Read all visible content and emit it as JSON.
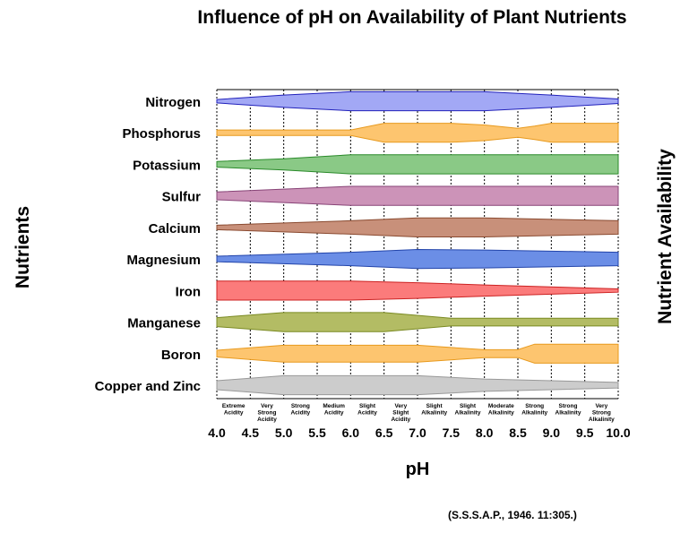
{
  "chart_data": {
    "type": "area",
    "title": "Influence of pH on Availability of Plant Nutrients",
    "xlabel": "pH",
    "ylabel_left": "Nutrients",
    "ylabel_right": "Nutrient Availability",
    "xlim": [
      4.0,
      10.0
    ],
    "x_ticks": [
      "4.0",
      "4.5",
      "5.0",
      "5.5",
      "6.0",
      "6.5",
      "7.0",
      "7.5",
      "8.0",
      "8.5",
      "9.0",
      "9.5",
      "10.0"
    ],
    "grid": true,
    "acidity_labels": [
      {
        "text": "Extreme Acidity",
        "ph": 4.25
      },
      {
        "text": "Very Strong Acidity",
        "ph": 4.75
      },
      {
        "text": "Strong Acidity",
        "ph": 5.25
      },
      {
        "text": "Medium Acidity",
        "ph": 5.75
      },
      {
        "text": "Slight Acidity",
        "ph": 6.25
      },
      {
        "text": "Very Slight Acidity",
        "ph": 6.75
      },
      {
        "text": "Slight Alkalinity",
        "ph": 7.25
      },
      {
        "text": "Slight Alkalinity",
        "ph": 7.75
      },
      {
        "text": "Moderate Alkalinity",
        "ph": 8.25
      },
      {
        "text": "Strong Alkalinity",
        "ph": 8.75
      },
      {
        "text": "Strong Alkalinity",
        "ph": 9.25
      },
      {
        "text": "Very Strong Alkalinity",
        "ph": 9.75
      }
    ],
    "series": [
      {
        "name": "Nitrogen",
        "color": "#a2a8f5",
        "stroke": "#2222bb",
        "points": [
          [
            4.0,
            0.15
          ],
          [
            5.0,
            0.55
          ],
          [
            6.0,
            0.85
          ],
          [
            8.0,
            0.85
          ],
          [
            9.0,
            0.55
          ],
          [
            10.0,
            0.2
          ]
        ]
      },
      {
        "name": "Phosphorus",
        "color": "#fdc56f",
        "stroke": "#e89a1e",
        "points": [
          [
            4.0,
            0.25
          ],
          [
            6.0,
            0.25
          ],
          [
            6.5,
            0.85
          ],
          [
            7.0,
            0.85
          ],
          [
            7.5,
            0.85
          ],
          [
            8.0,
            0.7
          ],
          [
            8.5,
            0.4
          ],
          [
            8.75,
            0.6
          ],
          [
            9.0,
            0.85
          ],
          [
            10.0,
            0.85
          ]
        ]
      },
      {
        "name": "Potassium",
        "color": "#8ac986",
        "stroke": "#2a8a2a",
        "points": [
          [
            4.0,
            0.25
          ],
          [
            5.0,
            0.5
          ],
          [
            6.0,
            0.85
          ],
          [
            10.0,
            0.85
          ]
        ]
      },
      {
        "name": "Sulfur",
        "color": "#cc93b8",
        "stroke": "#884477",
        "points": [
          [
            4.0,
            0.35
          ],
          [
            6.0,
            0.85
          ],
          [
            10.0,
            0.85
          ]
        ]
      },
      {
        "name": "Calcium",
        "color": "#c8907a",
        "stroke": "#8a4a30",
        "points": [
          [
            4.0,
            0.2
          ],
          [
            6.0,
            0.6
          ],
          [
            7.0,
            0.85
          ],
          [
            8.0,
            0.85
          ],
          [
            10.0,
            0.6
          ]
        ]
      },
      {
        "name": "Magnesium",
        "color": "#6b8ee6",
        "stroke": "#2244aa",
        "points": [
          [
            4.0,
            0.25
          ],
          [
            6.0,
            0.6
          ],
          [
            7.0,
            0.85
          ],
          [
            8.0,
            0.8
          ],
          [
            10.0,
            0.6
          ]
        ]
      },
      {
        "name": "Iron",
        "color": "#fb7b7b",
        "stroke": "#cc2222",
        "points": [
          [
            4.0,
            0.85
          ],
          [
            6.0,
            0.85
          ],
          [
            7.0,
            0.7
          ],
          [
            8.0,
            0.5
          ],
          [
            10.0,
            0.15
          ]
        ]
      },
      {
        "name": "Manganese",
        "color": "#b3bc64",
        "stroke": "#7a8a22",
        "points": [
          [
            4.0,
            0.4
          ],
          [
            5.0,
            0.85
          ],
          [
            6.5,
            0.85
          ],
          [
            7.5,
            0.35
          ],
          [
            10.0,
            0.35
          ]
        ]
      },
      {
        "name": "Boron",
        "color": "#fdc56f",
        "stroke": "#e89a1e",
        "points": [
          [
            4.0,
            0.3
          ],
          [
            5.0,
            0.75
          ],
          [
            7.0,
            0.75
          ],
          [
            8.0,
            0.35
          ],
          [
            8.5,
            0.35
          ],
          [
            8.75,
            0.85
          ],
          [
            10.0,
            0.85
          ]
        ]
      },
      {
        "name": "Copper and Zinc",
        "color": "#cccccc",
        "stroke": "#999999",
        "points": [
          [
            4.0,
            0.4
          ],
          [
            5.0,
            0.85
          ],
          [
            7.0,
            0.85
          ],
          [
            8.0,
            0.55
          ],
          [
            10.0,
            0.25
          ]
        ]
      }
    ]
  },
  "source_note": "(S.S.S.A.P., 1946. 11:305.)"
}
